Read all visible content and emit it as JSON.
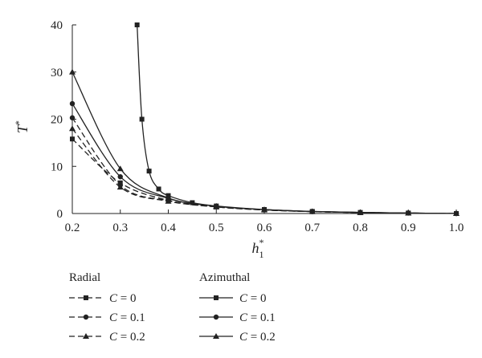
{
  "chart_data": {
    "type": "line",
    "xlabel": "h",
    "xlabel_sub": "1",
    "xlabel_sup": "*",
    "ylabel": "T",
    "ylabel_sup": "*",
    "xlim": [
      0.2,
      1.0
    ],
    "ylim": [
      0,
      40
    ],
    "xticks": [
      "0.2",
      "0.3",
      "0.4",
      "0.5",
      "0.6",
      "0.7",
      "0.8",
      "0.9",
      "1.0"
    ],
    "yticks": [
      "0",
      "10",
      "20",
      "30",
      "40"
    ],
    "grid": false,
    "legend": {
      "groups": [
        {
          "title": "Radial",
          "entries": [
            {
              "var": "C",
              "label": " = 0",
              "series": 0
            },
            {
              "var": "C",
              "label": " = 0.1",
              "series": 1
            },
            {
              "var": "C",
              "label": " = 0.2",
              "series": 2
            }
          ]
        },
        {
          "title": "Azimuthal",
          "entries": [
            {
              "var": "C",
              "label": " = 0",
              "series": 3
            },
            {
              "var": "C",
              "label": " = 0.1",
              "series": 4
            },
            {
              "var": "C",
              "label": " = 0.2",
              "series": 5
            }
          ]
        }
      ]
    },
    "series": [
      {
        "dash": "dashed",
        "marker": "square",
        "x": [
          0.2,
          0.3,
          0.4,
          0.5,
          0.6,
          0.7,
          0.8,
          0.9,
          1.0
        ],
        "y": [
          15.8,
          6.5,
          2.8,
          1.4,
          0.75,
          0.4,
          0.2,
          0.09,
          0.0
        ]
      },
      {
        "dash": "dashed",
        "marker": "circle",
        "x": [
          0.2,
          0.3,
          0.4,
          0.5,
          0.6,
          0.7,
          0.8,
          0.9,
          1.0
        ],
        "y": [
          20.3,
          6.0,
          2.7,
          1.45,
          0.78,
          0.42,
          0.22,
          0.1,
          0.0
        ]
      },
      {
        "dash": "dashed",
        "marker": "triangle",
        "x": [
          0.2,
          0.3,
          0.4,
          0.5,
          0.6,
          0.7,
          0.8,
          0.9,
          1.0
        ],
        "y": [
          18.0,
          5.6,
          2.6,
          1.4,
          0.76,
          0.4,
          0.21,
          0.09,
          0.0
        ]
      },
      {
        "dash": "solid",
        "marker": "square",
        "x": [
          0.335,
          0.345,
          0.36,
          0.38,
          0.4,
          0.45,
          0.5,
          0.6,
          0.7,
          0.8,
          0.9,
          1.0
        ],
        "y": [
          40.0,
          20.0,
          9.0,
          5.2,
          3.8,
          2.3,
          1.6,
          0.85,
          0.45,
          0.22,
          0.1,
          0.0
        ]
      },
      {
        "dash": "solid",
        "marker": "circle",
        "x": [
          0.2,
          0.3,
          0.4,
          0.5,
          0.6,
          0.7,
          0.8,
          0.9,
          1.0
        ],
        "y": [
          23.3,
          7.8,
          3.2,
          1.55,
          0.82,
          0.43,
          0.22,
          0.1,
          0.0
        ]
      },
      {
        "dash": "solid",
        "marker": "triangle",
        "x": [
          0.2,
          0.3,
          0.4,
          0.5,
          0.6,
          0.7,
          0.8,
          0.9,
          1.0
        ],
        "y": [
          30.0,
          9.5,
          3.3,
          1.55,
          0.82,
          0.43,
          0.22,
          0.1,
          0.0
        ]
      }
    ]
  }
}
